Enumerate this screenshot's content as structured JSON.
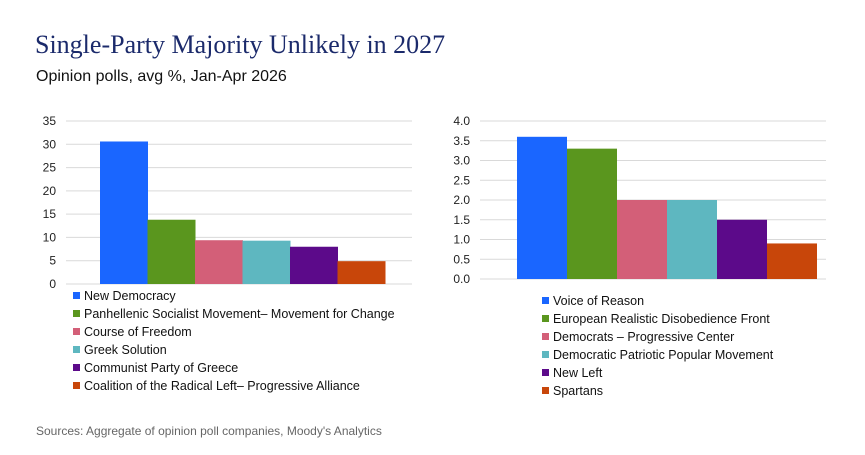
{
  "title": "Single-Party Majority Unlikely in 2027",
  "subtitle": "Opinion polls, avg %, Jan-Apr 2026",
  "source": "Sources: Aggregate of opinion poll companies, Moody's Analytics",
  "colors": {
    "blue": "#1a66ff",
    "green": "#5a961e",
    "pink": "#d35f78",
    "teal": "#5eb7c0",
    "purple": "#5c0a8a",
    "orange": "#c8460a",
    "grid": "#d9d9d9",
    "title": "#1b2a6b"
  },
  "chart_data": [
    {
      "type": "bar",
      "categories": [
        "New Democracy",
        "Panhellenic Socialist Movement– Movement for Change",
        "Course of Freedom",
        "Greek Solution",
        "Communist Party of Greece",
        "Coalition of the Radical Left– Progressive Alliance"
      ],
      "values": [
        30.6,
        13.8,
        9.4,
        9.3,
        8.0,
        4.9
      ],
      "colors": [
        "#1a66ff",
        "#5a961e",
        "#d35f78",
        "#5eb7c0",
        "#5c0a8a",
        "#c8460a"
      ],
      "ylim": [
        0,
        35
      ],
      "yticks": [
        "0",
        "5",
        "10",
        "15",
        "20",
        "25",
        "30",
        "35"
      ],
      "grid": true,
      "legend": "bottom"
    },
    {
      "type": "bar",
      "categories": [
        "Voice of Reason",
        "European Realistic Disobedience Front",
        "Democrats – Progressive Center",
        "Democratic Patriotic Popular Movement",
        "New Left",
        "Spartans"
      ],
      "values": [
        3.6,
        3.3,
        2.0,
        2.0,
        1.5,
        0.9
      ],
      "colors": [
        "#1a66ff",
        "#5a961e",
        "#d35f78",
        "#5eb7c0",
        "#5c0a8a",
        "#c8460a"
      ],
      "ylim": [
        0,
        4
      ],
      "yticks": [
        "0.0",
        "0.5",
        "1.0",
        "1.5",
        "2.0",
        "2.5",
        "3.0",
        "3.5",
        "4.0"
      ],
      "grid": true,
      "legend": "bottom"
    }
  ]
}
